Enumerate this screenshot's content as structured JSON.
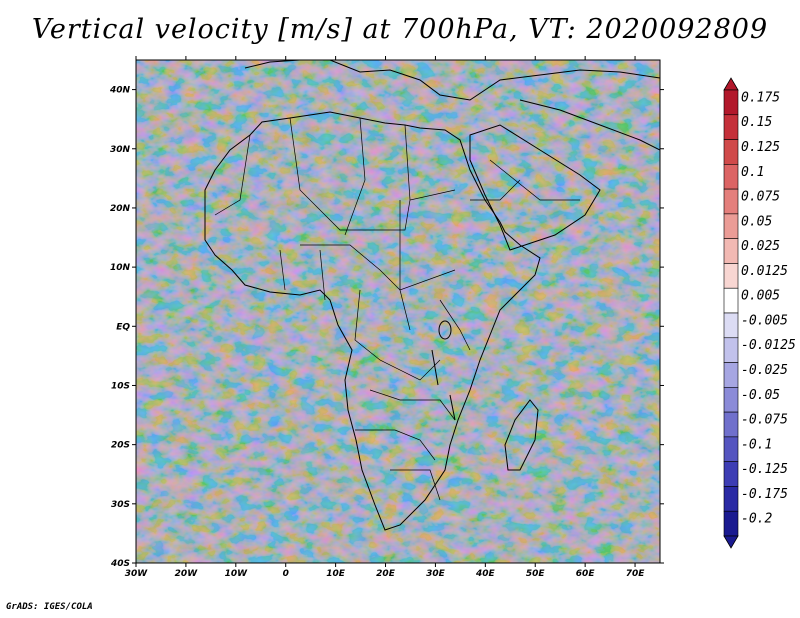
{
  "title": "Vertical velocity [m/s] at 700hPa, VT: 2020092809",
  "footer": "GrADS: IGES/COLA",
  "map": {
    "lat_range": [
      -40,
      45
    ],
    "lon_range": [
      -30,
      75
    ],
    "lat_ticks": [
      "40S",
      "30S",
      "20S",
      "10S",
      "EQ",
      "10N",
      "20N",
      "30N",
      "40N"
    ],
    "lon_ticks": [
      "30W",
      "20W",
      "10W",
      "0",
      "10E",
      "20E",
      "30E",
      "40E",
      "50E",
      "60E",
      "70E"
    ],
    "lat_values": [
      -40,
      -30,
      -20,
      -10,
      0,
      10,
      20,
      30,
      40
    ],
    "lon_values": [
      -30,
      -20,
      -10,
      0,
      10,
      20,
      30,
      40,
      50,
      60,
      70
    ]
  },
  "colorbar": {
    "labels": [
      "0.175",
      "0.15",
      "0.125",
      "0.1",
      "0.075",
      "0.05",
      "0.025",
      "0.0125",
      "0.005",
      "-0.005",
      "-0.0125",
      "-0.025",
      "-0.05",
      "-0.075",
      "-0.1",
      "-0.125",
      "-0.175",
      "-0.2"
    ],
    "colors": [
      "#b2182b",
      "#c5303a",
      "#d04a4a",
      "#dc6464",
      "#e47f7c",
      "#eb9c96",
      "#f2b9b3",
      "#f8d6d2",
      "#ffffff",
      "#dcdcf4",
      "#c2c2ec",
      "#a6a6e2",
      "#8b8bd8",
      "#7070cc",
      "#5555c0",
      "#3d3db4",
      "#2a2aa4",
      "#1a1a90"
    ]
  }
}
